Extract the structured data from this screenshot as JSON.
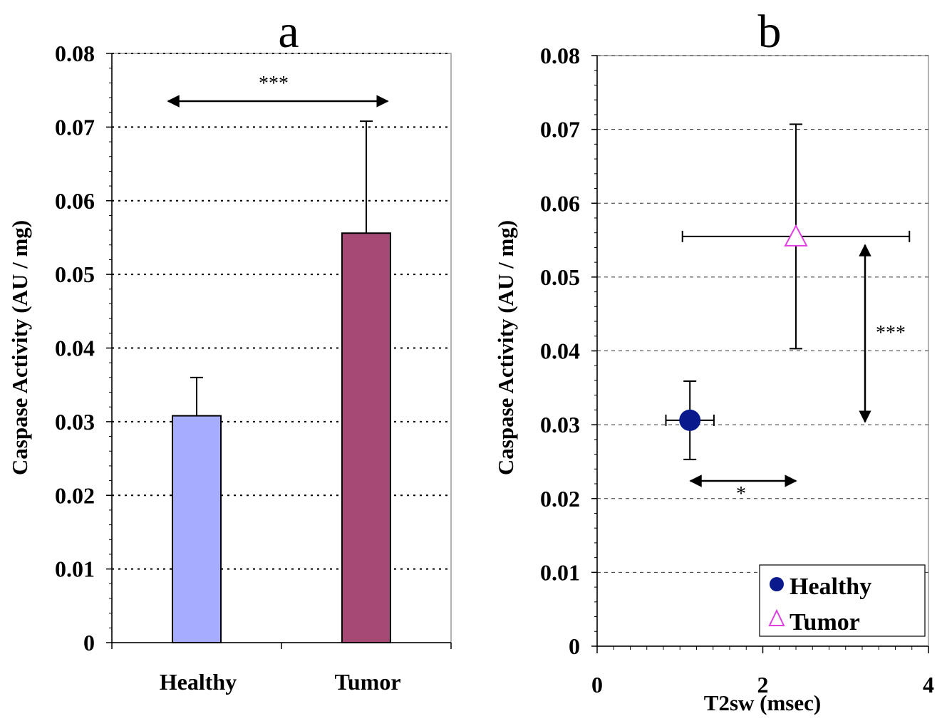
{
  "chart_data": [
    {
      "panel_label": "a",
      "type": "bar",
      "categories": [
        "Healthy",
        "Tumor"
      ],
      "values": [
        0.0308,
        0.0556
      ],
      "errors": [
        0.0052,
        0.0152
      ],
      "colors": [
        "#a6acff",
        "#a64974"
      ],
      "ylabel": "Caspase Activity (AU / mg)",
      "ylim": [
        0,
        0.08
      ],
      "yticks": [
        "0",
        "0.01",
        "0.02",
        "0.03",
        "0.04",
        "0.05",
        "0.06",
        "0.07",
        "0.08"
      ],
      "grid": true,
      "annotation": {
        "text": "***",
        "between": [
          "Healthy",
          "Tumor"
        ]
      }
    },
    {
      "panel_label": "b",
      "type": "scatter",
      "xlabel": "T2sw (msec)",
      "ylabel": "Caspase Activity (AU / mg)",
      "xlim": [
        0,
        4
      ],
      "ylim": [
        0,
        0.08
      ],
      "xticks": [
        "0",
        "2",
        "4"
      ],
      "yticks": [
        "0",
        "0.01",
        "0.02",
        "0.03",
        "0.04",
        "0.05",
        "0.06",
        "0.07",
        "0.08"
      ],
      "grid": true,
      "legend_position": "bottom-right",
      "series": [
        {
          "name": "Healthy",
          "marker": "circle",
          "color": "#0a1a8c",
          "x": 1.12,
          "y": 0.0306,
          "xerr": 0.29,
          "yerr": 0.0053
        },
        {
          "name": "Tumor",
          "marker": "triangle",
          "color": "#e040e0",
          "x": 2.4,
          "y": 0.0555,
          "xerr": 1.37,
          "yerr": 0.0152
        }
      ],
      "annotations": [
        {
          "text": "***",
          "direction": "vertical"
        },
        {
          "text": "*",
          "direction": "horizontal"
        }
      ]
    }
  ]
}
